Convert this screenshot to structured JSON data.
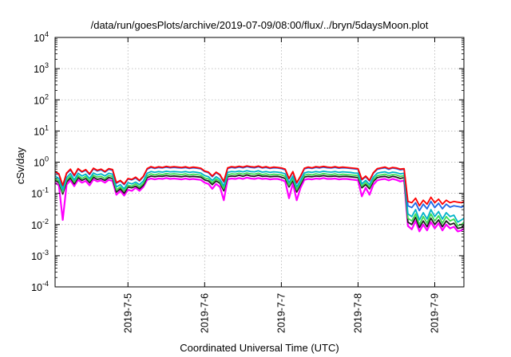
{
  "chart_data": {
    "type": "line",
    "title": "/data/run/goesPlots/archive/2019-07-09/08:00/flux/../bryn/5daysMoon.plot",
    "xlabel": "Coordinated Universal Time (UTC)",
    "ylabel": "cSv/day",
    "yscale": "log",
    "ylim": [
      0.0001,
      10000
    ],
    "xlim": [
      4.05,
      9.38
    ],
    "grid": true,
    "legend": "none",
    "x_ticks": [
      {
        "value": 5,
        "label": "2019-7-5"
      },
      {
        "value": 6,
        "label": "2019-7-6"
      },
      {
        "value": 7,
        "label": "2019-7-7"
      },
      {
        "value": 8,
        "label": "2019-7-8"
      },
      {
        "value": 9,
        "label": "2019-7-9"
      }
    ],
    "y_ticks": [
      {
        "value": 0.0001,
        "base": "10",
        "exp": "-4"
      },
      {
        "value": 0.001,
        "base": "10",
        "exp": "-3"
      },
      {
        "value": 0.01,
        "base": "10",
        "exp": "-2"
      },
      {
        "value": 0.1,
        "base": "10",
        "exp": "-1"
      },
      {
        "value": 1,
        "base": "10",
        "exp": "0"
      },
      {
        "value": 10,
        "base": "10",
        "exp": "1"
      },
      {
        "value": 100,
        "base": "10",
        "exp": "2"
      },
      {
        "value": 1000,
        "base": "10",
        "exp": "3"
      },
      {
        "value": 10000,
        "base": "10",
        "exp": "4"
      }
    ],
    "x": [
      4.05,
      4.1,
      4.15,
      4.2,
      4.25,
      4.3,
      4.35,
      4.4,
      4.45,
      4.5,
      4.55,
      4.6,
      4.65,
      4.7,
      4.75,
      4.8,
      4.85,
      4.9,
      4.95,
      5.0,
      5.05,
      5.1,
      5.15,
      5.2,
      5.25,
      5.3,
      5.35,
      5.4,
      5.45,
      5.5,
      5.55,
      5.6,
      5.65,
      5.7,
      5.75,
      5.8,
      5.85,
      5.9,
      5.95,
      6.0,
      6.05,
      6.1,
      6.15,
      6.2,
      6.25,
      6.3,
      6.35,
      6.4,
      6.45,
      6.5,
      6.55,
      6.6,
      6.65,
      6.7,
      6.75,
      6.8,
      6.85,
      6.9,
      6.95,
      7.0,
      7.05,
      7.1,
      7.15,
      7.2,
      7.25,
      7.3,
      7.35,
      7.4,
      7.45,
      7.5,
      7.55,
      7.6,
      7.65,
      7.7,
      7.75,
      7.8,
      7.85,
      7.9,
      7.95,
      8.0,
      8.05,
      8.1,
      8.15,
      8.2,
      8.25,
      8.3,
      8.35,
      8.4,
      8.45,
      8.5,
      8.55,
      8.6,
      8.65,
      8.7,
      8.75,
      8.8,
      8.85,
      8.9,
      8.95,
      9.0,
      9.05,
      9.1,
      9.15,
      9.2,
      9.25,
      9.3,
      9.35,
      9.38
    ],
    "series": [
      {
        "color": "#ff0000",
        "values": [
          0.5,
          0.42,
          0.18,
          0.45,
          0.6,
          0.38,
          0.62,
          0.5,
          0.58,
          0.42,
          0.64,
          0.55,
          0.6,
          0.5,
          0.62,
          0.58,
          0.22,
          0.26,
          0.2,
          0.3,
          0.28,
          0.33,
          0.26,
          0.35,
          0.62,
          0.72,
          0.66,
          0.71,
          0.68,
          0.73,
          0.69,
          0.72,
          0.7,
          0.68,
          0.71,
          0.66,
          0.7,
          0.67,
          0.64,
          0.52,
          0.48,
          0.36,
          0.48,
          0.4,
          0.24,
          0.66,
          0.72,
          0.69,
          0.74,
          0.7,
          0.76,
          0.72,
          0.7,
          0.75,
          0.68,
          0.72,
          0.66,
          0.7,
          0.68,
          0.65,
          0.6,
          0.3,
          0.5,
          0.22,
          0.36,
          0.64,
          0.7,
          0.66,
          0.72,
          0.69,
          0.73,
          0.7,
          0.68,
          0.72,
          0.67,
          0.7,
          0.68,
          0.66,
          0.64,
          0.62,
          0.28,
          0.36,
          0.26,
          0.46,
          0.62,
          0.66,
          0.7,
          0.62,
          0.68,
          0.65,
          0.6,
          0.62,
          0.055,
          0.05,
          0.07,
          0.04,
          0.06,
          0.045,
          0.075,
          0.05,
          0.065,
          0.045,
          0.06,
          0.05,
          0.055,
          0.052,
          0.05,
          0.055
        ]
      },
      {
        "color": "#1e66e6",
        "values": [
          0.48,
          0.4,
          0.17,
          0.43,
          0.57,
          0.36,
          0.6,
          0.48,
          0.55,
          0.4,
          0.61,
          0.52,
          0.57,
          0.48,
          0.59,
          0.55,
          0.21,
          0.25,
          0.19,
          0.29,
          0.27,
          0.31,
          0.25,
          0.34,
          0.59,
          0.68,
          0.63,
          0.67,
          0.65,
          0.69,
          0.66,
          0.68,
          0.66,
          0.65,
          0.67,
          0.63,
          0.66,
          0.64,
          0.61,
          0.5,
          0.46,
          0.34,
          0.46,
          0.38,
          0.23,
          0.63,
          0.68,
          0.65,
          0.7,
          0.66,
          0.72,
          0.68,
          0.66,
          0.71,
          0.65,
          0.68,
          0.63,
          0.66,
          0.65,
          0.62,
          0.57,
          0.29,
          0.48,
          0.21,
          0.34,
          0.61,
          0.66,
          0.63,
          0.68,
          0.65,
          0.69,
          0.66,
          0.65,
          0.68,
          0.64,
          0.66,
          0.65,
          0.63,
          0.61,
          0.59,
          0.27,
          0.34,
          0.25,
          0.44,
          0.59,
          0.63,
          0.66,
          0.59,
          0.65,
          0.62,
          0.57,
          0.59,
          0.04,
          0.035,
          0.05,
          0.028,
          0.045,
          0.032,
          0.055,
          0.035,
          0.048,
          0.032,
          0.045,
          0.036,
          0.04,
          0.038,
          0.036,
          0.04
        ]
      },
      {
        "color": "#00b4c8",
        "values": [
          0.36,
          0.3,
          0.13,
          0.32,
          0.43,
          0.27,
          0.44,
          0.36,
          0.41,
          0.3,
          0.45,
          0.39,
          0.42,
          0.36,
          0.44,
          0.41,
          0.16,
          0.19,
          0.14,
          0.22,
          0.2,
          0.23,
          0.19,
          0.25,
          0.44,
          0.5,
          0.47,
          0.5,
          0.48,
          0.51,
          0.49,
          0.5,
          0.49,
          0.48,
          0.5,
          0.47,
          0.49,
          0.47,
          0.45,
          0.37,
          0.34,
          0.26,
          0.34,
          0.28,
          0.17,
          0.47,
          0.5,
          0.49,
          0.52,
          0.49,
          0.53,
          0.5,
          0.49,
          0.53,
          0.48,
          0.5,
          0.47,
          0.49,
          0.48,
          0.46,
          0.42,
          0.22,
          0.36,
          0.16,
          0.26,
          0.45,
          0.49,
          0.47,
          0.5,
          0.48,
          0.51,
          0.49,
          0.48,
          0.5,
          0.47,
          0.49,
          0.48,
          0.47,
          0.45,
          0.44,
          0.2,
          0.26,
          0.19,
          0.33,
          0.44,
          0.47,
          0.49,
          0.44,
          0.48,
          0.46,
          0.42,
          0.44,
          0.022,
          0.018,
          0.03,
          0.014,
          0.024,
          0.015,
          0.03,
          0.018,
          0.026,
          0.015,
          0.024,
          0.018,
          0.02,
          0.012,
          0.014,
          0.016
        ]
      },
      {
        "color": "#3cdc50",
        "values": [
          0.3,
          0.25,
          0.11,
          0.27,
          0.36,
          0.23,
          0.37,
          0.3,
          0.35,
          0.25,
          0.38,
          0.33,
          0.35,
          0.3,
          0.37,
          0.35,
          0.13,
          0.16,
          0.12,
          0.18,
          0.17,
          0.2,
          0.16,
          0.21,
          0.37,
          0.42,
          0.39,
          0.42,
          0.4,
          0.43,
          0.41,
          0.42,
          0.41,
          0.4,
          0.42,
          0.39,
          0.41,
          0.4,
          0.38,
          0.31,
          0.29,
          0.22,
          0.29,
          0.24,
          0.14,
          0.39,
          0.42,
          0.41,
          0.44,
          0.41,
          0.45,
          0.42,
          0.41,
          0.44,
          0.4,
          0.42,
          0.39,
          0.41,
          0.4,
          0.39,
          0.35,
          0.18,
          0.3,
          0.13,
          0.22,
          0.38,
          0.41,
          0.39,
          0.42,
          0.4,
          0.43,
          0.41,
          0.4,
          0.42,
          0.39,
          0.41,
          0.4,
          0.39,
          0.38,
          0.37,
          0.17,
          0.22,
          0.16,
          0.28,
          0.37,
          0.39,
          0.41,
          0.37,
          0.4,
          0.39,
          0.35,
          0.37,
          0.016,
          0.013,
          0.022,
          0.01,
          0.018,
          0.011,
          0.022,
          0.013,
          0.019,
          0.011,
          0.018,
          0.013,
          0.015,
          0.009,
          0.01,
          0.012
        ]
      },
      {
        "color": "#202020",
        "values": [
          0.26,
          0.22,
          0.095,
          0.23,
          0.31,
          0.2,
          0.32,
          0.26,
          0.3,
          0.22,
          0.33,
          0.28,
          0.3,
          0.26,
          0.32,
          0.3,
          0.11,
          0.14,
          0.1,
          0.16,
          0.15,
          0.17,
          0.14,
          0.18,
          0.32,
          0.36,
          0.34,
          0.36,
          0.35,
          0.37,
          0.35,
          0.36,
          0.35,
          0.34,
          0.36,
          0.34,
          0.35,
          0.34,
          0.33,
          0.27,
          0.25,
          0.19,
          0.25,
          0.21,
          0.12,
          0.34,
          0.36,
          0.35,
          0.38,
          0.35,
          0.39,
          0.36,
          0.35,
          0.38,
          0.35,
          0.36,
          0.34,
          0.35,
          0.35,
          0.33,
          0.3,
          0.16,
          0.26,
          0.11,
          0.19,
          0.33,
          0.35,
          0.34,
          0.36,
          0.35,
          0.37,
          0.35,
          0.35,
          0.36,
          0.34,
          0.35,
          0.35,
          0.34,
          0.33,
          0.32,
          0.15,
          0.19,
          0.14,
          0.24,
          0.32,
          0.34,
          0.35,
          0.32,
          0.35,
          0.33,
          0.3,
          0.32,
          0.012,
          0.01,
          0.017,
          0.008,
          0.013,
          0.0085,
          0.016,
          0.01,
          0.014,
          0.0085,
          0.013,
          0.01,
          0.011,
          0.0075,
          0.008,
          0.0095
        ]
      },
      {
        "color": "#ff00ff",
        "values": [
          0.22,
          0.18,
          0.014,
          0.19,
          0.26,
          0.17,
          0.27,
          0.22,
          0.25,
          0.18,
          0.28,
          0.24,
          0.26,
          0.22,
          0.27,
          0.25,
          0.09,
          0.12,
          0.085,
          0.13,
          0.12,
          0.15,
          0.12,
          0.16,
          0.27,
          0.3,
          0.28,
          0.3,
          0.29,
          0.31,
          0.29,
          0.3,
          0.29,
          0.28,
          0.3,
          0.28,
          0.29,
          0.28,
          0.27,
          0.22,
          0.2,
          0.14,
          0.2,
          0.16,
          0.06,
          0.28,
          0.3,
          0.29,
          0.31,
          0.29,
          0.32,
          0.3,
          0.29,
          0.31,
          0.29,
          0.3,
          0.28,
          0.29,
          0.29,
          0.27,
          0.24,
          0.07,
          0.21,
          0.06,
          0.15,
          0.27,
          0.29,
          0.28,
          0.3,
          0.29,
          0.31,
          0.29,
          0.29,
          0.3,
          0.28,
          0.29,
          0.29,
          0.28,
          0.27,
          0.26,
          0.08,
          0.15,
          0.09,
          0.19,
          0.26,
          0.28,
          0.29,
          0.26,
          0.29,
          0.27,
          0.24,
          0.26,
          0.009,
          0.007,
          0.013,
          0.006,
          0.01,
          0.0065,
          0.012,
          0.0075,
          0.011,
          0.0065,
          0.01,
          0.0075,
          0.0085,
          0.006,
          0.0065,
          0.0075
        ]
      }
    ]
  }
}
